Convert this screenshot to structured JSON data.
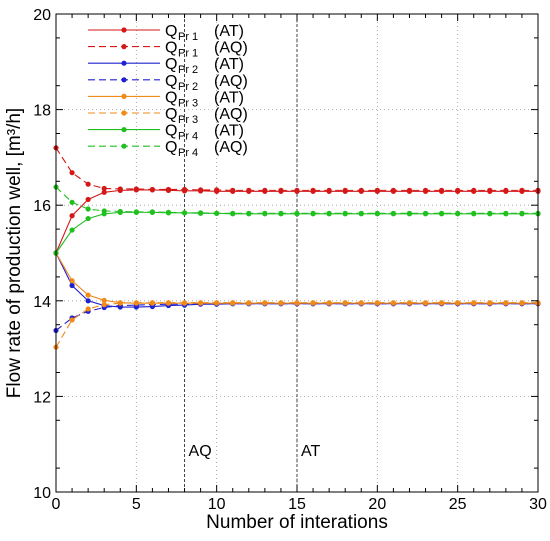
{
  "chart_data": {
    "type": "line",
    "xlabel": "Number of interations",
    "ylabel": "Flow rate of production well, [m³/h]",
    "xlim": [
      0,
      30
    ],
    "ylim": [
      10,
      20
    ],
    "xticks": [
      "0",
      "5",
      "10",
      "15",
      "20",
      "25",
      "30"
    ],
    "yticks": [
      "10",
      "12",
      "14",
      "16",
      "18",
      "20"
    ],
    "grid": "dotted",
    "legend_position": "top-left",
    "annotations": [
      {
        "x": 8,
        "label": "AQ",
        "style": "dashed vertical line"
      },
      {
        "x": 15,
        "label": "AT",
        "style": "dashed vertical line"
      }
    ],
    "series": [
      {
        "name": "Pr 1 (AT)",
        "color": "#d41818",
        "dash": "solid",
        "x": [
          0,
          1,
          2,
          3,
          4,
          5,
          6,
          7,
          8,
          9,
          10,
          11,
          12,
          13,
          14,
          15,
          16,
          17,
          18,
          19,
          20,
          21,
          22,
          23,
          24,
          25,
          26,
          27,
          28,
          29,
          30
        ],
        "y": [
          15.0,
          15.78,
          16.12,
          16.27,
          16.31,
          16.32,
          16.32,
          16.31,
          16.3,
          16.3,
          16.29,
          16.29,
          16.29,
          16.29,
          16.29,
          16.29,
          16.29,
          16.29,
          16.29,
          16.29,
          16.29,
          16.29,
          16.29,
          16.29,
          16.29,
          16.29,
          16.29,
          16.29,
          16.29,
          16.29,
          16.29
        ]
      },
      {
        "name": "Pr 1 (AQ)",
        "color": "#d41818",
        "dash": "dashed",
        "x": [
          0,
          1,
          2,
          3,
          4,
          5,
          6,
          7,
          8,
          9,
          10,
          11,
          12,
          13,
          14,
          15,
          16,
          17,
          18,
          19,
          20,
          21,
          22,
          23,
          24,
          25,
          26,
          27,
          28,
          29,
          30
        ],
        "y": [
          17.2,
          16.68,
          16.44,
          16.35,
          16.34,
          16.34,
          16.33,
          16.33,
          16.33,
          16.32,
          16.32,
          16.31,
          16.31,
          16.31,
          16.31,
          16.31,
          16.31,
          16.31,
          16.31,
          16.31,
          16.31,
          16.31,
          16.31,
          16.31,
          16.31,
          16.31,
          16.31,
          16.31,
          16.31,
          16.31,
          16.31
        ]
      },
      {
        "name": "Pr 2 (AT)",
        "color": "#2020d0",
        "dash": "solid",
        "x": [
          0,
          1,
          2,
          3,
          4,
          5,
          6,
          7,
          8,
          9,
          10,
          11,
          12,
          13,
          14,
          15,
          16,
          17,
          18,
          19,
          20,
          21,
          22,
          23,
          24,
          25,
          26,
          27,
          28,
          29,
          30
        ],
        "y": [
          15.0,
          14.32,
          14.0,
          13.9,
          13.87,
          13.87,
          13.88,
          13.9,
          13.91,
          13.93,
          13.93,
          13.94,
          13.94,
          13.94,
          13.94,
          13.94,
          13.94,
          13.94,
          13.94,
          13.94,
          13.94,
          13.94,
          13.94,
          13.94,
          13.94,
          13.94,
          13.94,
          13.94,
          13.94,
          13.94,
          13.94
        ]
      },
      {
        "name": "Pr 2 (AQ)",
        "color": "#2020d0",
        "dash": "dashed",
        "x": [
          0,
          1,
          2,
          3,
          4,
          5,
          6,
          7,
          8,
          9,
          10,
          11,
          12,
          13,
          14,
          15,
          16,
          17,
          18,
          19,
          20,
          21,
          22,
          23,
          24,
          25,
          26,
          27,
          28,
          29,
          30
        ],
        "y": [
          13.38,
          13.64,
          13.78,
          13.86,
          13.9,
          13.91,
          13.92,
          13.93,
          13.93,
          13.94,
          13.94,
          13.94,
          13.94,
          13.94,
          13.94,
          13.94,
          13.94,
          13.94,
          13.94,
          13.94,
          13.94,
          13.94,
          13.94,
          13.94,
          13.94,
          13.94,
          13.94,
          13.94,
          13.94,
          13.94,
          13.94
        ]
      },
      {
        "name": "Pr 3 (AT)",
        "color": "#f08a1a",
        "dash": "solid",
        "x": [
          0,
          1,
          2,
          3,
          4,
          5,
          6,
          7,
          8,
          9,
          10,
          11,
          12,
          13,
          14,
          15,
          16,
          17,
          18,
          19,
          20,
          21,
          22,
          23,
          24,
          25,
          26,
          27,
          28,
          29,
          30
        ],
        "y": [
          15.0,
          14.42,
          14.12,
          14.01,
          13.96,
          13.95,
          13.95,
          13.95,
          13.95,
          13.95,
          13.95,
          13.95,
          13.95,
          13.95,
          13.95,
          13.95,
          13.95,
          13.95,
          13.95,
          13.95,
          13.95,
          13.95,
          13.95,
          13.95,
          13.95,
          13.95,
          13.95,
          13.95,
          13.95,
          13.95,
          13.95
        ]
      },
      {
        "name": "Pr 3 (AQ)",
        "color": "#f08a1a",
        "dash": "dashed",
        "x": [
          0,
          1,
          2,
          3,
          4,
          5,
          6,
          7,
          8,
          9,
          10,
          11,
          12,
          13,
          14,
          15,
          16,
          17,
          18,
          19,
          20,
          21,
          22,
          23,
          24,
          25,
          26,
          27,
          28,
          29,
          30
        ],
        "y": [
          13.03,
          13.6,
          13.83,
          13.92,
          13.95,
          13.96,
          13.96,
          13.96,
          13.96,
          13.96,
          13.96,
          13.96,
          13.96,
          13.96,
          13.96,
          13.96,
          13.96,
          13.96,
          13.96,
          13.96,
          13.96,
          13.96,
          13.96,
          13.96,
          13.96,
          13.96,
          13.96,
          13.96,
          13.96,
          13.96,
          13.96
        ]
      },
      {
        "name": "Pr 4 (AT)",
        "color": "#20c020",
        "dash": "solid",
        "x": [
          0,
          1,
          2,
          3,
          4,
          5,
          6,
          7,
          8,
          9,
          10,
          11,
          12,
          13,
          14,
          15,
          16,
          17,
          18,
          19,
          20,
          21,
          22,
          23,
          24,
          25,
          26,
          27,
          28,
          29,
          30
        ],
        "y": [
          15.0,
          15.48,
          15.72,
          15.82,
          15.85,
          15.85,
          15.85,
          15.84,
          15.84,
          15.83,
          15.83,
          15.82,
          15.82,
          15.82,
          15.82,
          15.82,
          15.82,
          15.82,
          15.82,
          15.82,
          15.82,
          15.82,
          15.82,
          15.82,
          15.82,
          15.82,
          15.82,
          15.82,
          15.82,
          15.82,
          15.82
        ]
      },
      {
        "name": "Pr 4 (AQ)",
        "color": "#20c020",
        "dash": "dashed",
        "x": [
          0,
          1,
          2,
          3,
          4,
          5,
          6,
          7,
          8,
          9,
          10,
          11,
          12,
          13,
          14,
          15,
          16,
          17,
          18,
          19,
          20,
          21,
          22,
          23,
          24,
          25,
          26,
          27,
          28,
          29,
          30
        ],
        "y": [
          16.38,
          16.06,
          15.92,
          15.88,
          15.87,
          15.86,
          15.86,
          15.85,
          15.84,
          15.84,
          15.83,
          15.83,
          15.83,
          15.83,
          15.83,
          15.83,
          15.83,
          15.83,
          15.83,
          15.83,
          15.83,
          15.83,
          15.83,
          15.83,
          15.83,
          15.83,
          15.83,
          15.83,
          15.83,
          15.83,
          15.83
        ]
      }
    ],
    "legend_entries": [
      {
        "q": "Q",
        "sub": "Pr 1",
        "suffix": "(AT)"
      },
      {
        "q": "Q",
        "sub": "Pr 1",
        "suffix": "(AQ)"
      },
      {
        "q": "Q",
        "sub": "Pr 2",
        "suffix": "(AT)"
      },
      {
        "q": "Q",
        "sub": "Pr 2",
        "suffix": "(AQ)"
      },
      {
        "q": "Q",
        "sub": "Pr 3",
        "suffix": "(AT)"
      },
      {
        "q": "Q",
        "sub": "Pr 3",
        "suffix": "(AQ)"
      },
      {
        "q": "Q",
        "sub": "Pr 4",
        "suffix": "(AT)"
      },
      {
        "q": "Q",
        "sub": "Pr 4",
        "suffix": "(AQ)"
      }
    ]
  }
}
